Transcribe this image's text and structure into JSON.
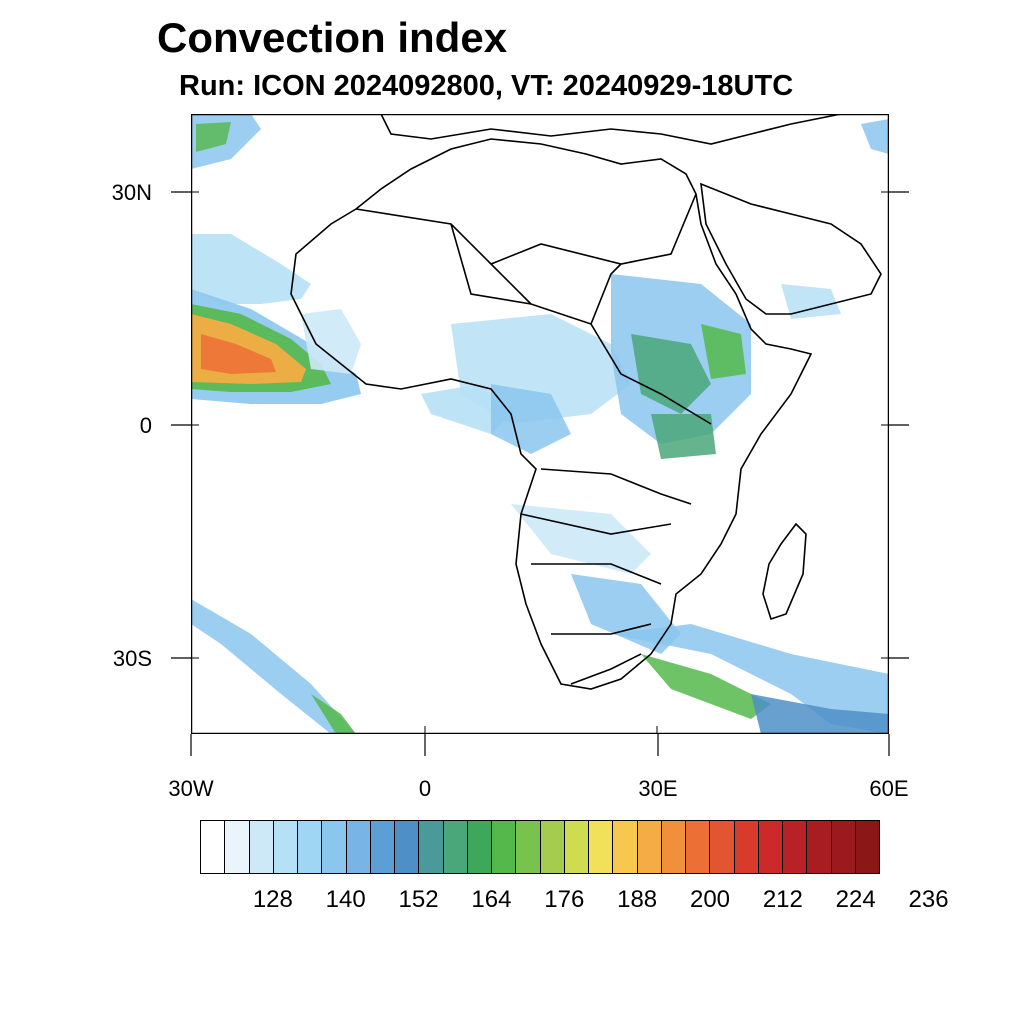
{
  "title": "Convection index",
  "subtitle": "Run: ICON 2024092800,  VT: 20240929-18UTC",
  "axes": {
    "lat_labels": [
      "30N",
      "0",
      "30S"
    ],
    "lon_labels": [
      "30W",
      "0",
      "30E",
      "60E"
    ]
  },
  "colorbar": {
    "colors": [
      "#ffffff",
      "#e8f5fd",
      "#cde9f8",
      "#b6e0f6",
      "#9ed6f4",
      "#8ac6ee",
      "#78b4e6",
      "#5b9fd4",
      "#4e8fc7",
      "#4a9a9a",
      "#4aa77a",
      "#3ea85a",
      "#54b84a",
      "#79c24e",
      "#a6cc4f",
      "#cfdc52",
      "#f0e05a",
      "#f8c84e",
      "#f6ac44",
      "#f1903c",
      "#ec6f35",
      "#e25530",
      "#d83a2c",
      "#cc2a2a",
      "#b82227",
      "#a71d22",
      "#9a1a1d",
      "#8b1717"
    ],
    "labels": [
      "128",
      "140",
      "152",
      "164",
      "176",
      "188",
      "200",
      "212",
      "224",
      "236"
    ]
  },
  "chart_data": {
    "type": "heatmap",
    "title": "Convection index",
    "subtitle": "Run: ICON 2024092800,  VT: 20240929-18UTC",
    "lon_range": [
      -30,
      60
    ],
    "lat_range": [
      -40,
      40
    ],
    "xlabel": "",
    "ylabel": "",
    "colorbar_ticks": [
      128,
      140,
      152,
      164,
      176,
      188,
      200,
      212,
      224,
      236
    ],
    "levels_start": 116,
    "level_step": 4
  }
}
